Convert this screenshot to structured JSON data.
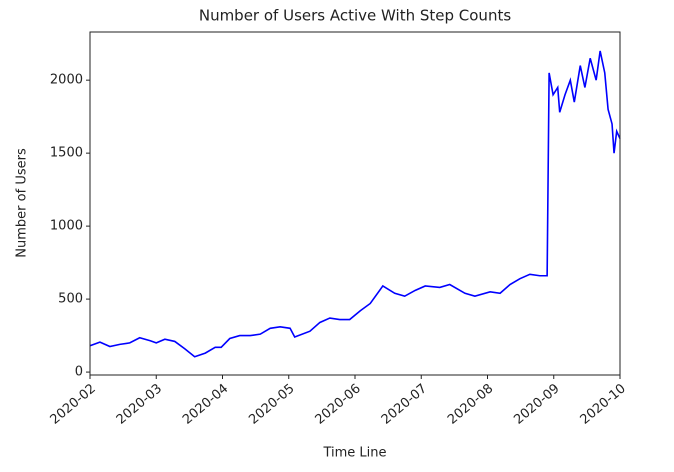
{
  "chart_data": {
    "type": "line",
    "title": "Number of Users Active With Step Counts",
    "x_label": "Time Line",
    "y_label": "Number of Users",
    "x": [
      0,
      0.15,
      0.3,
      0.45,
      0.6,
      0.75,
      0.91,
      1.0,
      1.13,
      1.28,
      1.43,
      1.58,
      1.74,
      1.89,
      1.98,
      2.11,
      2.26,
      2.42,
      2.57,
      2.72,
      2.87,
      3.02,
      3.09,
      3.32,
      3.47,
      3.62,
      3.77,
      3.92,
      4.08,
      4.23,
      4.42,
      4.6,
      4.75,
      4.91,
      5.06,
      5.28,
      5.43,
      5.66,
      5.81,
      6.04,
      6.19,
      6.34,
      6.49,
      6.64,
      6.79,
      6.9,
      6.93,
      6.99,
      7.06,
      7.09,
      7.17,
      7.25,
      7.31,
      7.4,
      7.47,
      7.55,
      7.64,
      7.7,
      7.77,
      7.82,
      7.88,
      7.91,
      7.95,
      8
    ],
    "series": [
      {
        "color": "#0000ff",
        "values": [
          180,
          205,
          175,
          190,
          200,
          235,
          215,
          200,
          225,
          210,
          160,
          105,
          130,
          170,
          170,
          230,
          250,
          250,
          260,
          300,
          310,
          300,
          240,
          280,
          340,
          370,
          360,
          360,
          420,
          470,
          590,
          540,
          520,
          560,
          590,
          580,
          600,
          540,
          520,
          550,
          540,
          600,
          640,
          670,
          660,
          660,
          2050,
          1900,
          1950,
          1780,
          1900,
          2000,
          1850,
          2100,
          1950,
          2150,
          2000,
          2200,
          2050,
          1800,
          1700,
          1500,
          1650,
          1600
        ]
      }
    ],
    "xlim": [
      0,
      8
    ],
    "xticks": [
      {
        "value": 0,
        "label": "2020-02"
      },
      {
        "value": 1,
        "label": "2020-03"
      },
      {
        "value": 2,
        "label": "2020-04"
      },
      {
        "value": 3,
        "label": "2020-05"
      },
      {
        "value": 4,
        "label": "2020-06"
      },
      {
        "value": 5,
        "label": "2020-07"
      },
      {
        "value": 6,
        "label": "2020-08"
      },
      {
        "value": 7,
        "label": "2020-09"
      },
      {
        "value": 8,
        "label": "2020-10"
      }
    ],
    "ylim": [
      -20,
      2330
    ],
    "yticks": [
      0,
      500,
      1000,
      1500,
      2000
    ],
    "grid": false
  }
}
